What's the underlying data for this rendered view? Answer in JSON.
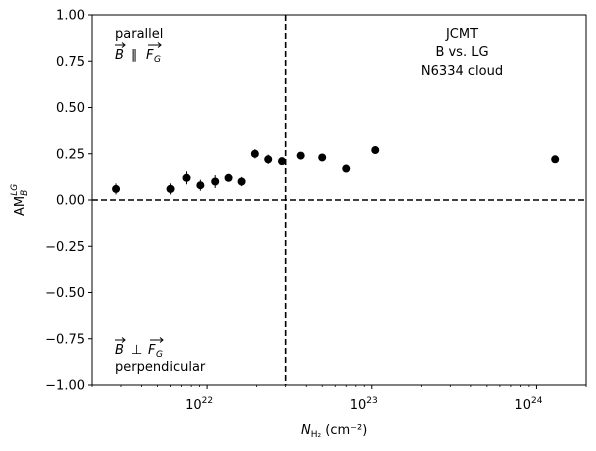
{
  "chart_data": {
    "type": "scatter",
    "title": "",
    "xlabel_main": "N",
    "xlabel_sub": "H₂",
    "xlabel_tail": " (cm⁻²)",
    "ylabel_main": "AM",
    "ylabel_sub": "B",
    "ylabel_sup": "LG",
    "x_scale": "log",
    "xlim": [
      2e+21,
      2e+24
    ],
    "ylim": [
      -1.0,
      1.0
    ],
    "grid": false,
    "legend": "none",
    "y_ticks": [
      "−1.00",
      "−0.75",
      "−0.50",
      "−0.25",
      "0.00",
      "0.25",
      "0.50",
      "0.75",
      "1.00"
    ],
    "x_ticks": [
      {
        "base": "10",
        "exp": "22"
      },
      {
        "base": "10",
        "exp": "23"
      },
      {
        "base": "10",
        "exp": "24"
      }
    ],
    "vline_x": 3e+22,
    "hline_y": 0.0,
    "points": [
      {
        "x": 2.8e+21,
        "y": 0.06,
        "err": 0.03
      },
      {
        "x": 6e+21,
        "y": 0.06,
        "err": 0.03
      },
      {
        "x": 7.5e+21,
        "y": 0.12,
        "err": 0.035
      },
      {
        "x": 9.1e+21,
        "y": 0.08,
        "err": 0.03
      },
      {
        "x": 1.12e+22,
        "y": 0.1,
        "err": 0.035
      },
      {
        "x": 1.35e+22,
        "y": 0.12,
        "err": 0.02
      },
      {
        "x": 1.62e+22,
        "y": 0.1,
        "err": 0.025
      },
      {
        "x": 1.95e+22,
        "y": 0.25,
        "err": 0.025
      },
      {
        "x": 2.35e+22,
        "y": 0.22,
        "err": 0.025
      },
      {
        "x": 2.85e+22,
        "y": 0.21,
        "err": 0.02
      },
      {
        "x": 3.7e+22,
        "y": 0.24,
        "err": 0.015
      },
      {
        "x": 5e+22,
        "y": 0.23,
        "err": 0.015
      },
      {
        "x": 7e+22,
        "y": 0.17,
        "err": 0.01
      },
      {
        "x": 1.05e+23,
        "y": 0.27,
        "err": 0.01
      },
      {
        "x": 1.3e+24,
        "y": 0.22,
        "err": 0.01
      }
    ],
    "annotations": {
      "top_left_line1": "parallel",
      "top_left_vecB": "B",
      "top_left_rel": "∥",
      "top_left_vecF": "F",
      "top_left_vecF_sub": "G",
      "bottom_left_vecB": "B",
      "bottom_left_rel": "⊥",
      "bottom_left_vecF": "F",
      "bottom_left_vecF_sub": "G",
      "bottom_left_line2": "perpendicular",
      "top_right_line1": "JCMT",
      "top_right_line2": "B vs. LG",
      "top_right_line3": "N6334 cloud"
    },
    "colors": {
      "points": "#000000",
      "axes": "#000000",
      "background": "#ffffff"
    }
  }
}
